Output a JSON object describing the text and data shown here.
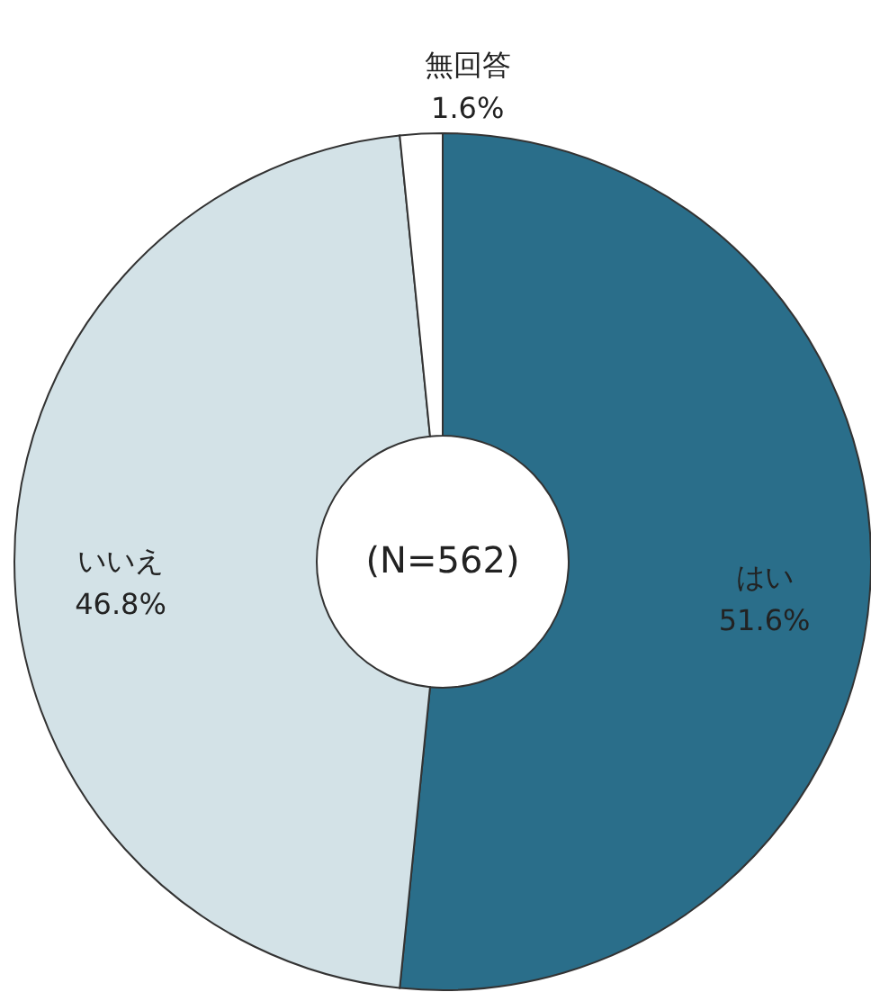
{
  "chart_data": {
    "type": "donut",
    "categories": [
      "はい",
      "いいえ",
      "無回答"
    ],
    "values": [
      51.6,
      46.8,
      1.6
    ],
    "colors": [
      "#2a6e8a",
      "#d3e2e7",
      "#ffffff"
    ],
    "value_labels": [
      "51.6%",
      "46.8%",
      "1.6%"
    ],
    "annotations": [
      "(N=562)"
    ]
  }
}
